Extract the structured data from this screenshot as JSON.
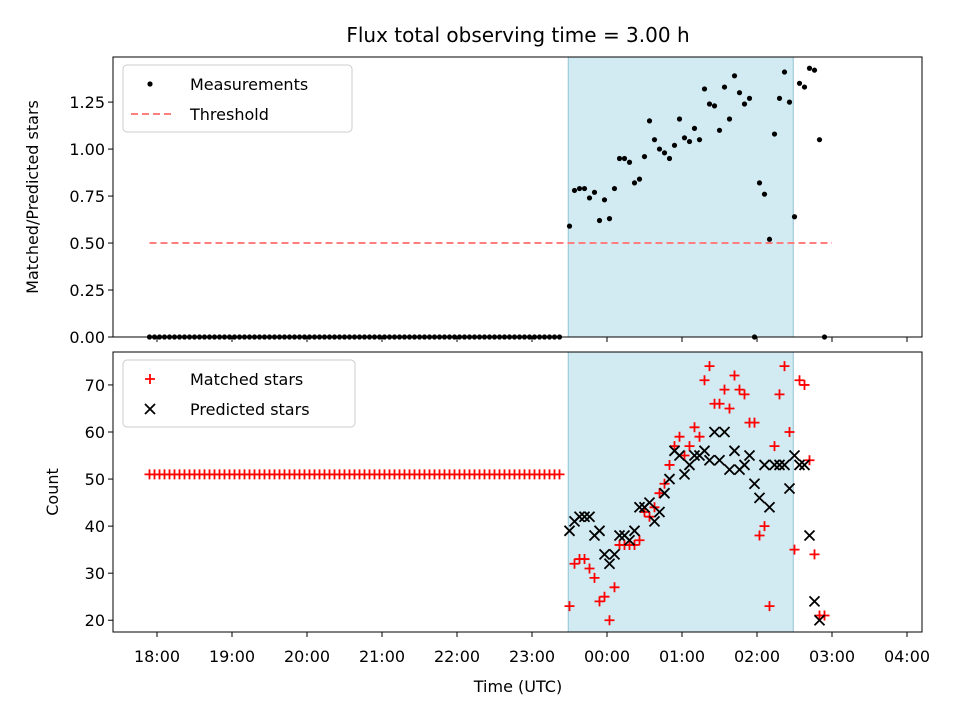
{
  "figure": {
    "title": "Flux total observing time = 3.00 h",
    "xlabel": "Time (UTC)",
    "x_ticks": [
      "18:00",
      "19:00",
      "20:00",
      "21:00",
      "22:00",
      "23:00",
      "00:00",
      "01:00",
      "02:00",
      "03:00",
      "04:00"
    ]
  },
  "chart_data": [
    {
      "type": "scatter",
      "ylabel": "Matched/Predicted stars",
      "ylim": [
        0,
        1.49
      ],
      "y_ticks": [
        "0.00",
        "0.25",
        "0.50",
        "0.75",
        "1.00",
        "1.25"
      ],
      "shaded_span": {
        "x_start": "23:29",
        "x_end": "02:29",
        "color": "#add8e6"
      },
      "legend": {
        "placement": "upper-left",
        "entries": [
          "Measurements",
          "Threshold"
        ]
      },
      "series": [
        {
          "name": "Measurements",
          "color": "#000000",
          "marker": "dot",
          "points": [
            [
              "17:54",
              0
            ],
            [
              "17:58",
              0
            ],
            [
              "18:02",
              0
            ],
            [
              "18:06",
              0
            ],
            [
              "18:10",
              0
            ],
            [
              "18:14",
              0
            ],
            [
              "18:18",
              0
            ],
            [
              "18:22",
              0
            ],
            [
              "18:26",
              0
            ],
            [
              "18:30",
              0
            ],
            [
              "18:34",
              0
            ],
            [
              "18:38",
              0
            ],
            [
              "18:42",
              0
            ],
            [
              "18:46",
              0
            ],
            [
              "18:50",
              0
            ],
            [
              "18:54",
              0
            ],
            [
              "18:58",
              0
            ],
            [
              "19:02",
              0
            ],
            [
              "19:06",
              0
            ],
            [
              "19:10",
              0
            ],
            [
              "19:14",
              0
            ],
            [
              "19:18",
              0
            ],
            [
              "19:22",
              0
            ],
            [
              "19:26",
              0
            ],
            [
              "19:30",
              0
            ],
            [
              "19:34",
              0
            ],
            [
              "19:38",
              0
            ],
            [
              "19:42",
              0
            ],
            [
              "19:46",
              0
            ],
            [
              "19:50",
              0
            ],
            [
              "19:54",
              0
            ],
            [
              "19:58",
              0
            ],
            [
              "20:02",
              0
            ],
            [
              "20:06",
              0
            ],
            [
              "20:10",
              0
            ],
            [
              "20:14",
              0
            ],
            [
              "20:18",
              0
            ],
            [
              "20:22",
              0
            ],
            [
              "20:26",
              0
            ],
            [
              "20:30",
              0
            ],
            [
              "20:34",
              0
            ],
            [
              "20:38",
              0
            ],
            [
              "20:42",
              0
            ],
            [
              "20:46",
              0
            ],
            [
              "20:50",
              0
            ],
            [
              "20:54",
              0
            ],
            [
              "20:58",
              0
            ],
            [
              "21:02",
              0
            ],
            [
              "21:06",
              0
            ],
            [
              "21:10",
              0
            ],
            [
              "21:14",
              0
            ],
            [
              "21:18",
              0
            ],
            [
              "21:22",
              0
            ],
            [
              "21:26",
              0
            ],
            [
              "21:30",
              0
            ],
            [
              "21:34",
              0
            ],
            [
              "21:38",
              0
            ],
            [
              "21:42",
              0
            ],
            [
              "21:46",
              0
            ],
            [
              "21:50",
              0
            ],
            [
              "21:54",
              0
            ],
            [
              "21:58",
              0
            ],
            [
              "22:02",
              0
            ],
            [
              "22:06",
              0
            ],
            [
              "22:10",
              0
            ],
            [
              "22:14",
              0
            ],
            [
              "22:18",
              0
            ],
            [
              "22:22",
              0
            ],
            [
              "22:26",
              0
            ],
            [
              "22:30",
              0
            ],
            [
              "22:34",
              0
            ],
            [
              "22:38",
              0
            ],
            [
              "22:42",
              0
            ],
            [
              "22:46",
              0
            ],
            [
              "22:50",
              0
            ],
            [
              "22:54",
              0
            ],
            [
              "22:58",
              0
            ],
            [
              "23:02",
              0
            ],
            [
              "23:06",
              0
            ],
            [
              "23:10",
              0
            ],
            [
              "23:14",
              0
            ],
            [
              "23:18",
              0
            ],
            [
              "23:22",
              0
            ],
            [
              "23:30",
              0.59
            ],
            [
              "23:34",
              0.78
            ],
            [
              "23:38",
              0.79
            ],
            [
              "23:42",
              0.79
            ],
            [
              "23:46",
              0.74
            ],
            [
              "23:50",
              0.77
            ],
            [
              "23:54",
              0.62
            ],
            [
              "23:58",
              0.73
            ],
            [
              "00:02",
              0.63
            ],
            [
              "00:06",
              0.79
            ],
            [
              "00:10",
              0.95
            ],
            [
              "00:14",
              0.95
            ],
            [
              "00:18",
              0.93
            ],
            [
              "00:22",
              0.82
            ],
            [
              "00:26",
              0.84
            ],
            [
              "00:30",
              0.96
            ],
            [
              "00:34",
              1.15
            ],
            [
              "00:38",
              1.05
            ],
            [
              "00:42",
              1.0
            ],
            [
              "00:46",
              0.98
            ],
            [
              "00:50",
              0.95
            ],
            [
              "00:54",
              1.02
            ],
            [
              "00:58",
              1.16
            ],
            [
              "01:02",
              1.06
            ],
            [
              "01:06",
              1.04
            ],
            [
              "01:10",
              1.11
            ],
            [
              "01:14",
              1.05
            ],
            [
              "01:18",
              1.32
            ],
            [
              "01:22",
              1.24
            ],
            [
              "01:26",
              1.23
            ],
            [
              "01:30",
              1.1
            ],
            [
              "01:34",
              1.33
            ],
            [
              "01:38",
              1.16
            ],
            [
              "01:42",
              1.39
            ],
            [
              "01:46",
              1.3
            ],
            [
              "01:50",
              1.24
            ],
            [
              "01:54",
              1.27
            ],
            [
              "01:58",
              0.0
            ],
            [
              "02:02",
              0.82
            ],
            [
              "02:06",
              0.76
            ],
            [
              "02:10",
              0.52
            ],
            [
              "02:14",
              1.08
            ],
            [
              "02:18",
              1.27
            ],
            [
              "02:22",
              1.41
            ],
            [
              "02:26",
              1.25
            ],
            [
              "02:30",
              0.64
            ],
            [
              "02:34",
              1.35
            ],
            [
              "02:38",
              1.33
            ],
            [
              "02:42",
              1.43
            ],
            [
              "02:46",
              1.42
            ],
            [
              "02:50",
              1.05
            ],
            [
              "02:54",
              0.0
            ]
          ]
        },
        {
          "name": "Threshold",
          "color": "#ff7f7f",
          "style": "dashed",
          "points": [
            [
              "17:54",
              0.5
            ],
            [
              "03:00",
              0.5
            ]
          ]
        }
      ]
    },
    {
      "type": "scatter",
      "ylabel": "Count",
      "ylim": [
        17.5,
        77
      ],
      "y_ticks": [
        "20",
        "30",
        "40",
        "50",
        "60",
        "70"
      ],
      "shaded_span": {
        "x_start": "23:29",
        "x_end": "02:29",
        "color": "#add8e6"
      },
      "legend": {
        "placement": "upper-left",
        "entries": [
          "Matched stars",
          "Predicted stars"
        ]
      },
      "series": [
        {
          "name": "Matched stars",
          "color": "#ff0000",
          "marker": "plus",
          "constant_segment": {
            "x_start": "17:54",
            "x_end": "23:22",
            "step_minutes": 4,
            "value": 51
          },
          "points": [
            [
              "23:30",
              23
            ],
            [
              "23:34",
              32
            ],
            [
              "23:38",
              33
            ],
            [
              "23:42",
              33
            ],
            [
              "23:46",
              31
            ],
            [
              "23:50",
              29
            ],
            [
              "23:54",
              24
            ],
            [
              "23:58",
              25
            ],
            [
              "00:02",
              20
            ],
            [
              "00:06",
              27
            ],
            [
              "00:10",
              36
            ],
            [
              "00:14",
              36
            ],
            [
              "00:18",
              36
            ],
            [
              "00:22",
              36
            ],
            [
              "00:26",
              37
            ],
            [
              "00:30",
              43
            ],
            [
              "00:34",
              42
            ],
            [
              "00:38",
              44
            ],
            [
              "00:42",
              47
            ],
            [
              "00:46",
              49
            ],
            [
              "00:50",
              53
            ],
            [
              "00:54",
              57
            ],
            [
              "00:58",
              59
            ],
            [
              "01:02",
              55
            ],
            [
              "01:06",
              57
            ],
            [
              "01:10",
              61
            ],
            [
              "01:14",
              59
            ],
            [
              "01:18",
              71
            ],
            [
              "01:22",
              74
            ],
            [
              "01:26",
              66
            ],
            [
              "01:30",
              66
            ],
            [
              "01:34",
              69
            ],
            [
              "01:38",
              65
            ],
            [
              "01:42",
              72
            ],
            [
              "01:46",
              69
            ],
            [
              "01:50",
              68
            ],
            [
              "01:54",
              62
            ],
            [
              "01:58",
              62
            ],
            [
              "02:02",
              38
            ],
            [
              "02:06",
              40
            ],
            [
              "02:10",
              23
            ],
            [
              "02:14",
              57
            ],
            [
              "02:18",
              68
            ],
            [
              "02:22",
              74
            ],
            [
              "02:26",
              60
            ],
            [
              "02:30",
              35
            ],
            [
              "02:34",
              71
            ],
            [
              "02:38",
              70
            ],
            [
              "02:42",
              54
            ],
            [
              "02:46",
              34
            ],
            [
              "02:50",
              21
            ],
            [
              "02:54",
              21
            ]
          ]
        },
        {
          "name": "Predicted stars",
          "color": "#000000",
          "marker": "x",
          "points": [
            [
              "23:30",
              39
            ],
            [
              "23:34",
              41
            ],
            [
              "23:38",
              42
            ],
            [
              "23:42",
              42
            ],
            [
              "23:46",
              42
            ],
            [
              "23:50",
              38
            ],
            [
              "23:54",
              39
            ],
            [
              "23:58",
              34
            ],
            [
              "00:02",
              32
            ],
            [
              "00:06",
              34
            ],
            [
              "00:10",
              38
            ],
            [
              "00:14",
              38
            ],
            [
              "00:18",
              37
            ],
            [
              "00:22",
              39
            ],
            [
              "00:26",
              44
            ],
            [
              "00:30",
              44
            ],
            [
              "00:34",
              45
            ],
            [
              "00:38",
              41
            ],
            [
              "00:42",
              43
            ],
            [
              "00:46",
              47
            ],
            [
              "00:50",
              50
            ],
            [
              "00:54",
              56
            ],
            [
              "00:58",
              55
            ],
            [
              "01:02",
              51
            ],
            [
              "01:06",
              53
            ],
            [
              "01:10",
              55
            ],
            [
              "01:14",
              55
            ],
            [
              "01:18",
              56
            ],
            [
              "01:22",
              54
            ],
            [
              "01:26",
              60
            ],
            [
              "01:30",
              54
            ],
            [
              "01:34",
              60
            ],
            [
              "01:38",
              52
            ],
            [
              "01:42",
              56
            ],
            [
              "01:46",
              52
            ],
            [
              "01:50",
              53
            ],
            [
              "01:54",
              55
            ],
            [
              "01:58",
              49
            ],
            [
              "02:02",
              46
            ],
            [
              "02:06",
              53
            ],
            [
              "02:10",
              44
            ],
            [
              "02:14",
              53
            ],
            [
              "02:18",
              53
            ],
            [
              "02:22",
              53
            ],
            [
              "02:26",
              48
            ],
            [
              "02:30",
              55
            ],
            [
              "02:34",
              53
            ],
            [
              "02:38",
              53
            ],
            [
              "02:42",
              38
            ],
            [
              "02:46",
              24
            ],
            [
              "02:50",
              20
            ]
          ]
        }
      ]
    }
  ]
}
